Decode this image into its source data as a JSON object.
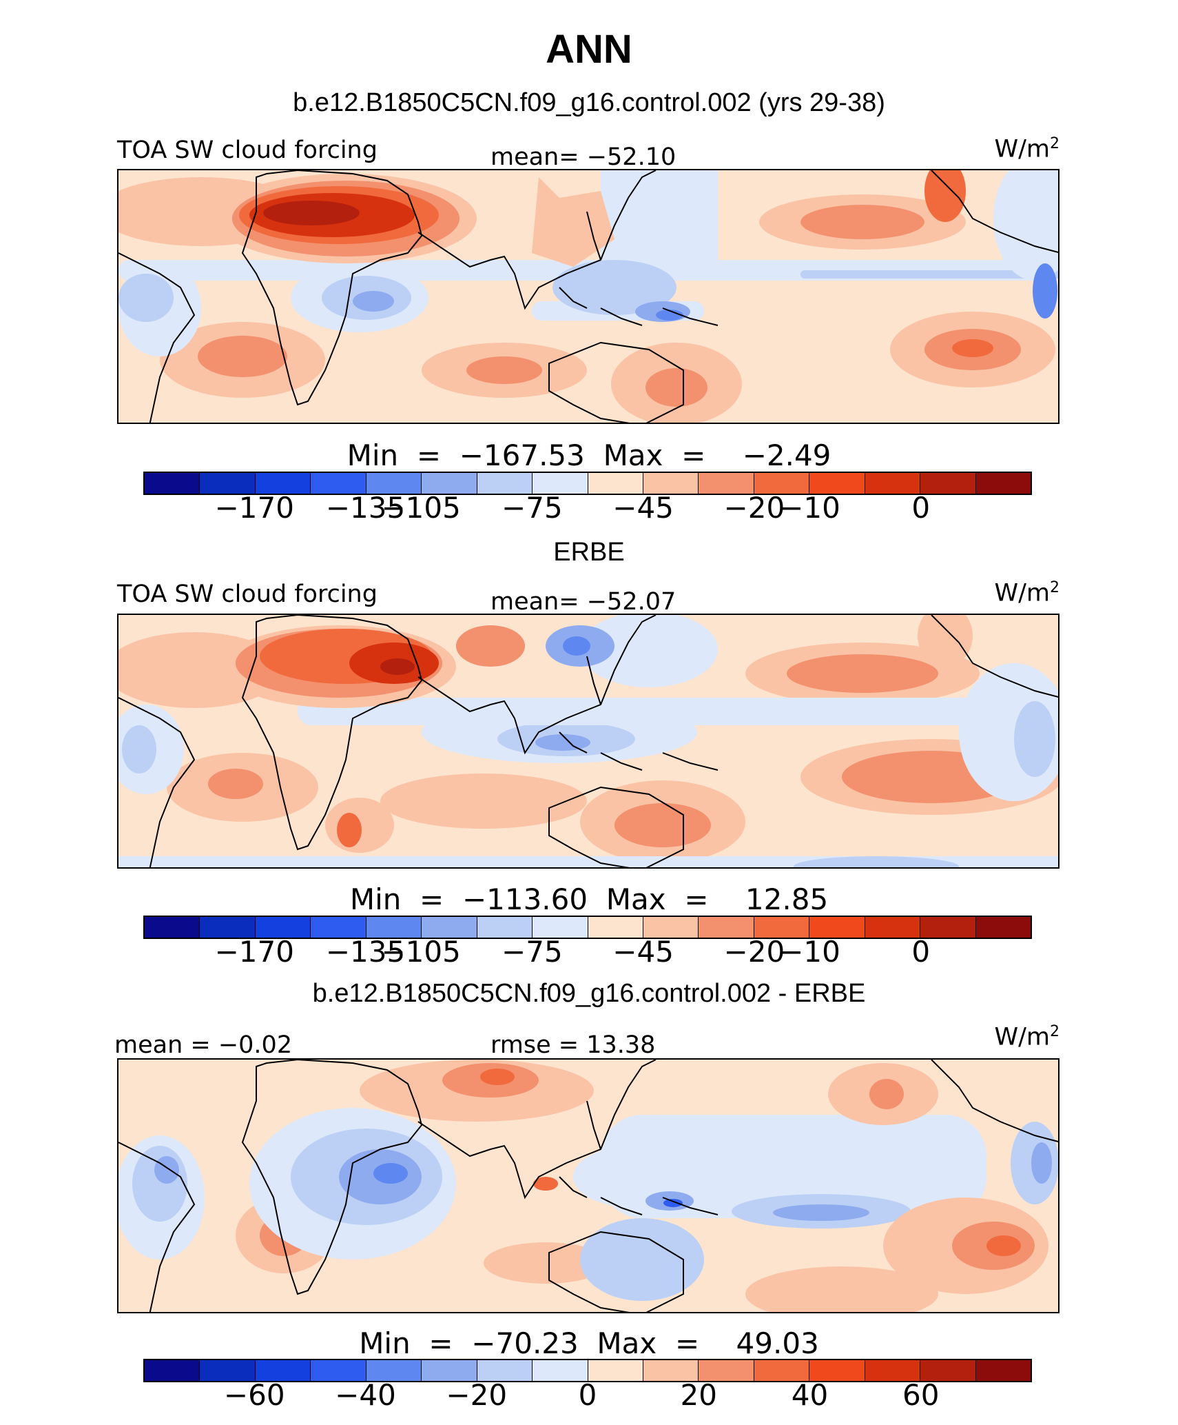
{
  "title": "ANN",
  "panels": [
    {
      "heading": "b.e12.B1850C5CN.f09_g16.control.002 (yrs 29-38)",
      "left_label": "TOA SW cloud forcing",
      "center_label": "mean= −52.10",
      "units_base": "W/m",
      "units_exp": "2",
      "minmax": "Min  =  −167.53  Max  =    −2.49",
      "colorbar_ticks": [
        "−170",
        "−135",
        "−105",
        "−75",
        "−45",
        "−20",
        "−10",
        "0"
      ]
    },
    {
      "heading": "ERBE",
      "left_label": "TOA SW cloud forcing",
      "center_label": "mean= −52.07",
      "units_base": "W/m",
      "units_exp": "2",
      "minmax": "Min  =  −113.60  Max  =    12.85",
      "colorbar_ticks": [
        "−170",
        "−135",
        "−105",
        "−75",
        "−45",
        "−20",
        "−10",
        "0"
      ]
    },
    {
      "heading": "b.e12.B1850C5CN.f09_g16.control.002 - ERBE",
      "left_label": "mean  =   −0.02",
      "center_label": "rmse  =   13.38",
      "units_base": "W/m",
      "units_exp": "2",
      "minmax": "Min  =  −70.23  Max  =    49.03",
      "colorbar_ticks": [
        "−60",
        "−40",
        "−20",
        "0",
        "20",
        "40",
        "60"
      ]
    }
  ],
  "colorbar_colors": [
    "#0a0a8c",
    "#0b2dbd",
    "#1440e0",
    "#2f5cf0",
    "#5f87f0",
    "#8eabf0",
    "#bcd0f5",
    "#dde9fa",
    "#fde4cf",
    "#fac3a6",
    "#f3906d",
    "#f06a3e",
    "#f04a1c",
    "#d63210",
    "#b4200e",
    "#8c0c0c"
  ],
  "field_colors": {
    "ocean_base": "#fde4cf",
    "light_red": "#fac3a6",
    "mid_red": "#f3906d",
    "strong_red": "#f06a3e",
    "dark_red": "#d63210",
    "deepest_red": "#b4200e",
    "very_light_blue": "#dde9fa",
    "light_blue": "#bcd0f5",
    "mid_blue": "#8eabf0",
    "strong_blue": "#5f87f0",
    "dark_blue": "#2f5cf0",
    "coast": "#000000"
  }
}
